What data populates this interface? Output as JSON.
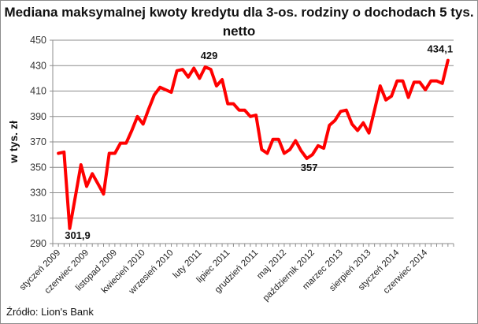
{
  "chart_data": {
    "type": "line",
    "title": "Mediana maksymalnej kwoty kredytu dla 3-os. rodziny o dochodach 5 tys. netto",
    "title_lines": [
      "Mediana maksymalnej kwoty kredytu dla 3-os. rodziny o dochodach 5 tys.",
      "netto"
    ],
    "xlabel": "",
    "ylabel": "w tys. zł",
    "ylim": [
      290,
      450
    ],
    "yticks": [
      290,
      310,
      330,
      350,
      370,
      390,
      410,
      430,
      450
    ],
    "grid": "horizontal",
    "legend": "none",
    "x_tick_labels": [
      "styczeń 2009",
      "czerwiec 2009",
      "listopad 2009",
      "kwiecień 2010",
      "wrzesień 2010",
      "luty 2011",
      "lipiec 2011",
      "grudzień 2011",
      "maj 2012",
      "październik 2012",
      "marzec 2013",
      "sierpień 2013",
      "styczeń 2014",
      "czerwiec 2014"
    ],
    "x_tick_every": 5,
    "series": [
      {
        "name": "Mediana maksymalnej kwoty kredytu",
        "color": "#ff0000",
        "values": [
          361,
          362,
          301.9,
          327,
          352,
          335,
          345,
          337,
          329,
          361,
          361,
          369,
          369,
          379,
          390,
          384,
          396,
          407,
          413,
          411,
          409,
          426,
          427,
          421,
          428,
          420,
          429,
          427,
          414,
          419,
          400,
          400,
          395,
          395,
          390,
          391,
          364,
          361,
          372,
          372,
          361,
          364,
          371,
          363,
          357,
          360,
          367,
          365,
          383,
          387,
          394,
          395,
          384,
          379,
          385,
          377,
          395,
          414,
          403,
          406,
          418,
          418,
          405,
          417,
          417,
          411,
          418,
          418,
          416,
          434.1
        ]
      }
    ],
    "annotations": [
      {
        "label": "301,9",
        "index": 2
      },
      {
        "label": "429",
        "index": 26
      },
      {
        "label": "357",
        "index": 44
      },
      {
        "label": "434,1",
        "index": 69
      }
    ]
  },
  "source": "Źródło: Lion's Bank"
}
